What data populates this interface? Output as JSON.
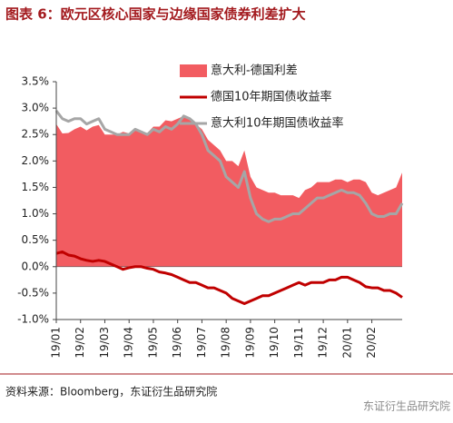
{
  "title": "图表 6：欧元区核心国家与边缘国家债券利差扩大",
  "source": "资料来源：Bloomberg，东证衍生品研究院",
  "watermark": "东证衍生品研究院",
  "chart_data": {
    "type": "line",
    "categories": [
      "19/01",
      null,
      null,
      null,
      "19/02",
      null,
      null,
      null,
      "19/03",
      null,
      null,
      null,
      "19/04",
      null,
      null,
      null,
      "19/05",
      null,
      null,
      null,
      "19/06",
      null,
      null,
      null,
      "19/07",
      null,
      null,
      null,
      "19/08",
      null,
      null,
      null,
      "19/09",
      null,
      null,
      null,
      "19/10",
      null,
      null,
      null,
      "19/11",
      null,
      null,
      null,
      "19/12",
      null,
      null,
      null,
      "20/01",
      null,
      null,
      null,
      "20/02",
      null,
      null,
      null,
      null,
      null
    ],
    "series": [
      {
        "name": "意大利-德国利差",
        "color": "#f25c61",
        "area": true,
        "values": [
          2.7,
          2.52,
          2.53,
          2.6,
          2.65,
          2.58,
          2.65,
          2.68,
          2.5,
          2.5,
          2.5,
          2.55,
          2.52,
          2.6,
          2.55,
          2.53,
          2.65,
          2.65,
          2.77,
          2.75,
          2.8,
          2.85,
          2.8,
          2.7,
          2.6,
          2.4,
          2.3,
          2.2,
          2.0,
          2.0,
          1.9,
          2.2,
          1.7,
          1.5,
          1.45,
          1.4,
          1.4,
          1.35,
          1.35,
          1.35,
          1.3,
          1.45,
          1.5,
          1.6,
          1.6,
          1.6,
          1.65,
          1.65,
          1.6,
          1.65,
          1.65,
          1.6,
          1.4,
          1.35,
          1.4,
          1.45,
          1.5,
          1.78
        ]
      },
      {
        "name": "德国10年期国债收益率",
        "color": "#c00000",
        "values": [
          0.25,
          0.28,
          0.22,
          0.2,
          0.15,
          0.12,
          0.1,
          0.12,
          0.1,
          0.05,
          0.0,
          -0.05,
          -0.02,
          0.0,
          0.0,
          -0.03,
          -0.05,
          -0.1,
          -0.12,
          -0.15,
          -0.2,
          -0.25,
          -0.3,
          -0.3,
          -0.35,
          -0.4,
          -0.4,
          -0.45,
          -0.5,
          -0.6,
          -0.65,
          -0.7,
          -0.65,
          -0.6,
          -0.55,
          -0.55,
          -0.5,
          -0.45,
          -0.4,
          -0.35,
          -0.3,
          -0.35,
          -0.3,
          -0.3,
          -0.3,
          -0.25,
          -0.25,
          -0.2,
          -0.2,
          -0.25,
          -0.3,
          -0.38,
          -0.4,
          -0.4,
          -0.45,
          -0.45,
          -0.5,
          -0.58
        ]
      },
      {
        "name": "意大利10年期国债收益率",
        "color": "#a6a6a6",
        "values": [
          2.95,
          2.8,
          2.75,
          2.8,
          2.8,
          2.7,
          2.75,
          2.8,
          2.6,
          2.55,
          2.5,
          2.5,
          2.5,
          2.6,
          2.55,
          2.5,
          2.6,
          2.55,
          2.65,
          2.6,
          2.7,
          2.85,
          2.8,
          2.7,
          2.5,
          2.2,
          2.1,
          2.0,
          1.7,
          1.6,
          1.5,
          1.8,
          1.3,
          1.0,
          0.9,
          0.85,
          0.9,
          0.9,
          0.95,
          1.0,
          1.0,
          1.1,
          1.2,
          1.3,
          1.3,
          1.35,
          1.4,
          1.45,
          1.4,
          1.4,
          1.35,
          1.2,
          1.0,
          0.95,
          0.95,
          1.0,
          1.0,
          1.2
        ]
      }
    ],
    "ylim": [
      -1.0,
      3.5
    ],
    "yticks": [
      {
        "value": -1.0,
        "label": "-1.0%"
      },
      {
        "value": -0.5,
        "label": "-0.5%"
      },
      {
        "value": 0.0,
        "label": "0.0%"
      },
      {
        "value": 0.5,
        "label": "0.5%"
      },
      {
        "value": 1.0,
        "label": "1.0%"
      },
      {
        "value": 1.5,
        "label": "1.5%"
      },
      {
        "value": 2.0,
        "label": "2.0%"
      },
      {
        "value": 2.5,
        "label": "2.5%"
      },
      {
        "value": 3.0,
        "label": "3.0%"
      },
      {
        "value": 3.5,
        "label": "3.5%"
      }
    ]
  }
}
